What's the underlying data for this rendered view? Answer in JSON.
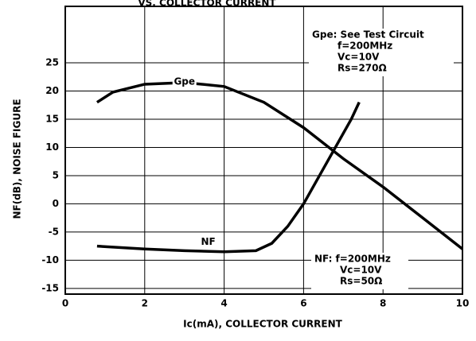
{
  "chart_data": {
    "type": "line",
    "title": "VS. COLLECTOR CURRENT",
    "x_label": "Ic(mA), COLLECTOR CURRENT",
    "y_label": "NF(dB), NOISE FIGURE",
    "xlim": [
      0,
      10
    ],
    "xticks": [
      0,
      2,
      4,
      6,
      8,
      10
    ],
    "ylim": [
      -16,
      35
    ],
    "yticks": [
      -15,
      -10,
      -5,
      0,
      5,
      10,
      15,
      20,
      25
    ],
    "grid": true,
    "series": [
      {
        "name": "Gpe",
        "color": "#000000",
        "x": [
          0.8,
          1.2,
          2,
          3,
          4,
          5,
          6,
          7,
          8,
          9,
          10
        ],
        "values": [
          18,
          19.8,
          21.2,
          21.5,
          20.8,
          18,
          13.5,
          8,
          3,
          -2.5,
          -8
        ]
      },
      {
        "name": "NF",
        "color": "#000000",
        "x": [
          0.8,
          2,
          3,
          4,
          4.8,
          5.2,
          5.6,
          6,
          6.4,
          6.8,
          7.2,
          7.4
        ],
        "values": [
          -7.5,
          -8,
          -8.3,
          -8.5,
          -8.3,
          -7,
          -4,
          0,
          5,
          10,
          15,
          18
        ]
      }
    ],
    "annotations": [
      {
        "lines": [
          "Gpe: See Test Circuit",
          "f=200MHz",
          "Vc=10V",
          "Rs=270Ω"
        ]
      },
      {
        "lines": [
          "NF: f=200MHz",
          "Vc=10V",
          "Rs=50Ω"
        ]
      }
    ]
  }
}
